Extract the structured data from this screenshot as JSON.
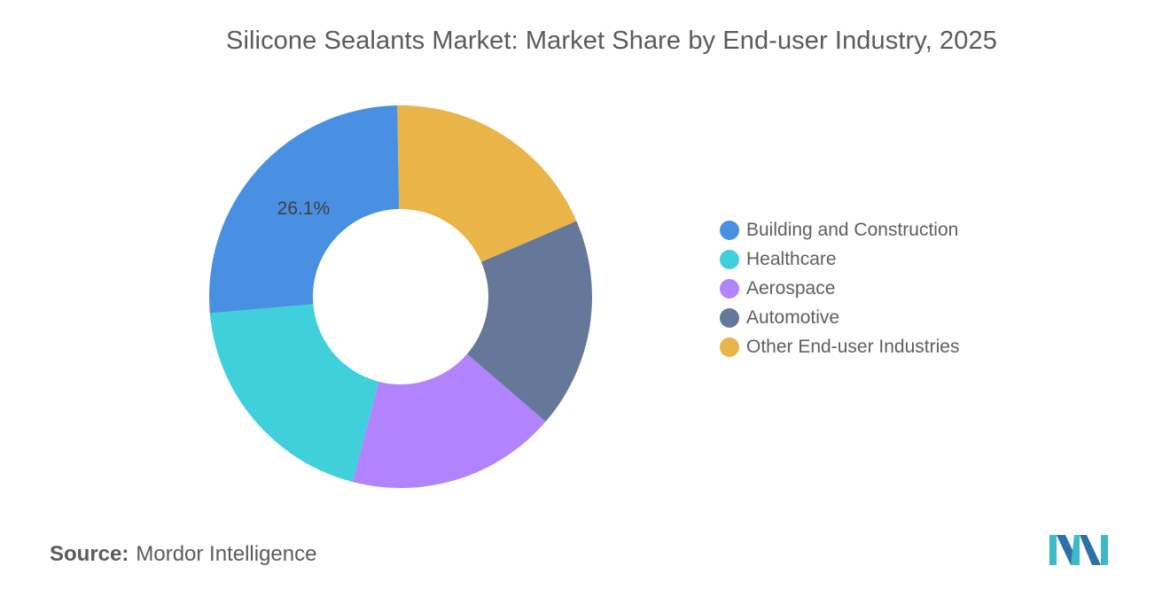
{
  "page": {
    "title": "Silicone Sealants Market: Market Share by End-user Industry, 2025",
    "source_label": "Source:",
    "source_value": "Mordor Intelligence",
    "logo_icon": "mordor-intelligence-logo-icon"
  },
  "chart_data": {
    "type": "pie",
    "variant": "donut",
    "title": "Silicone Sealants Market: Market Share by End-user Industry, 2025",
    "categories": [
      "Building and Construction",
      "Healthcare",
      "Aerospace",
      "Automotive",
      "Other End-user Industries"
    ],
    "values": [
      26.1,
      19.6,
      17.7,
      17.8,
      18.8
    ],
    "unit": "%",
    "data_labels": [
      "26.1%",
      "",
      "",
      "",
      ""
    ],
    "colors": [
      "#4a90e2",
      "#40d0dc",
      "#b183fc",
      "#66789a",
      "#e9b448"
    ],
    "start_angle_deg": -91,
    "direction": "counterclockwise",
    "legend_position": "right"
  }
}
